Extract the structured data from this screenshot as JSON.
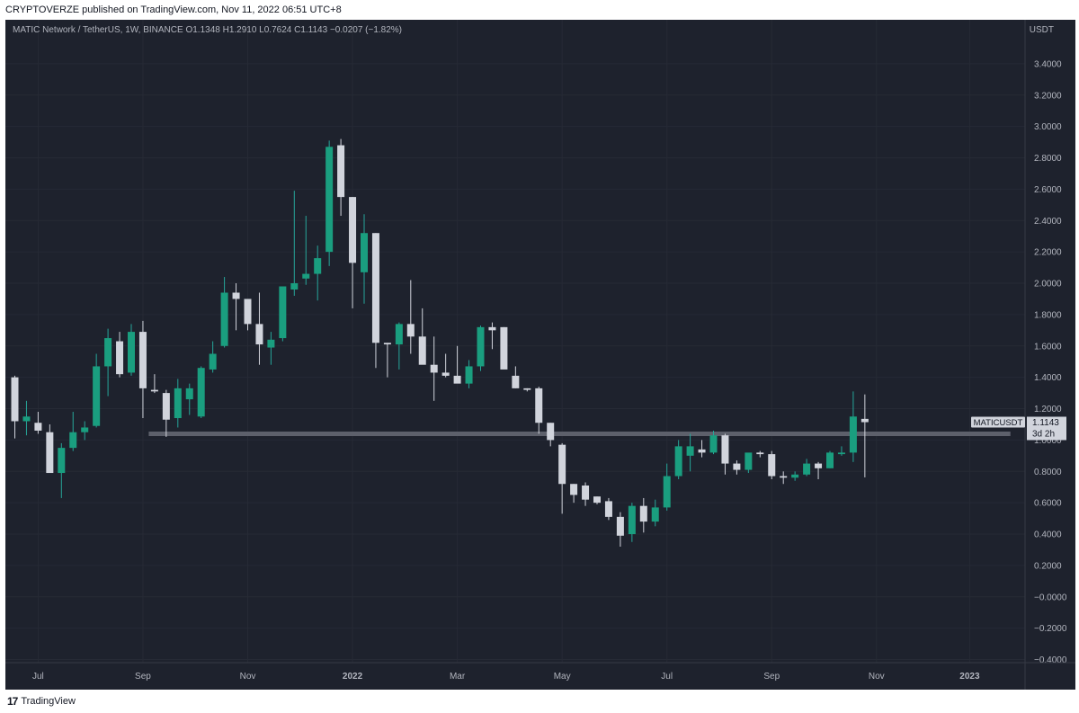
{
  "header": {
    "publisher_line": "CRYPTOVERZE published on TradingView.com, Nov 11, 2022 06:51 UTC+8"
  },
  "symbol_line": "MATIC Network / TetherUS, 1W, BINANCE  O1.1348  H1.2910  L0.7624  C1.1143  −0.0207 (−1.82%)",
  "footer": {
    "brand": "TradingView",
    "logo_mark": "17"
  },
  "colors": {
    "background": "#1e222d",
    "up": "#26a69a",
    "up_fill": "#1a9e7f",
    "down": "#d1d4dc",
    "grid": "#262a35",
    "axis_text": "#b2b5be",
    "support_line": "#5d606b",
    "price_tag_bg": "#d1d4dc",
    "price_tag_text": "#131722"
  },
  "chart_data": {
    "type": "candlestick",
    "title": "MATIC Network / TetherUS, 1W, BINANCE",
    "symbol": "MATICUSDT",
    "unit": "USDT",
    "ylim": [
      -0.5,
      3.6
    ],
    "y_ticks": [
      "3.4000",
      "3.2000",
      "3.0000",
      "2.8000",
      "2.6000",
      "2.4000",
      "2.2000",
      "2.0000",
      "1.8000",
      "1.6000",
      "1.4000",
      "1.2000",
      "1.0000",
      "0.8000",
      "0.6000",
      "0.4000",
      "0.2000",
      "−0.0000",
      "−0.2000",
      "−0.4000"
    ],
    "y_tick_values": [
      3.4,
      3.2,
      3.0,
      2.8,
      2.6,
      2.4,
      2.2,
      2.0,
      1.8,
      1.6,
      1.4,
      1.2,
      1.0,
      0.8,
      0.6,
      0.4,
      0.2,
      0.0,
      -0.2,
      -0.4
    ],
    "x_ticks": [
      {
        "label": "Jul",
        "index": 2
      },
      {
        "label": "Sep",
        "index": 11
      },
      {
        "label": "Nov",
        "index": 20
      },
      {
        "label": "2022",
        "index": 29
      },
      {
        "label": "Mar",
        "index": 38
      },
      {
        "label": "May",
        "index": 47
      },
      {
        "label": "Jul",
        "index": 56
      },
      {
        "label": "Sep",
        "index": 65
      },
      {
        "label": "Nov",
        "index": 74
      },
      {
        "label": "2023",
        "index": 82
      }
    ],
    "grid": true,
    "last_price": {
      "label": "MATICUSDT",
      "value": "1.1143",
      "countdown": "3d 2h"
    },
    "support_level": {
      "value": 1.04,
      "from_index": 11.5,
      "to_index": 85.5
    },
    "candles": [
      {
        "o": 1.4,
        "h": 1.41,
        "l": 1.01,
        "c": 1.12
      },
      {
        "o": 1.12,
        "h": 1.25,
        "l": 1.03,
        "c": 1.15
      },
      {
        "o": 1.11,
        "h": 1.18,
        "l": 1.04,
        "c": 1.06
      },
      {
        "o": 1.05,
        "h": 1.1,
        "l": 0.8,
        "c": 0.79
      },
      {
        "o": 0.79,
        "h": 0.98,
        "l": 0.63,
        "c": 0.95
      },
      {
        "o": 0.95,
        "h": 1.18,
        "l": 0.93,
        "c": 1.05
      },
      {
        "o": 1.05,
        "h": 1.12,
        "l": 1.0,
        "c": 1.08
      },
      {
        "o": 1.09,
        "h": 1.55,
        "l": 1.08,
        "c": 1.47
      },
      {
        "o": 1.47,
        "h": 1.71,
        "l": 1.28,
        "c": 1.65
      },
      {
        "o": 1.63,
        "h": 1.69,
        "l": 1.4,
        "c": 1.42
      },
      {
        "o": 1.43,
        "h": 1.74,
        "l": 1.41,
        "c": 1.69
      },
      {
        "o": 1.69,
        "h": 1.76,
        "l": 1.14,
        "c": 1.33
      },
      {
        "o": 1.32,
        "h": 1.42,
        "l": 1.3,
        "c": 1.31
      },
      {
        "o": 1.3,
        "h": 1.32,
        "l": 1.02,
        "c": 1.13
      },
      {
        "o": 1.14,
        "h": 1.39,
        "l": 1.08,
        "c": 1.33
      },
      {
        "o": 1.26,
        "h": 1.36,
        "l": 1.16,
        "c": 1.33
      },
      {
        "o": 1.15,
        "h": 1.47,
        "l": 1.14,
        "c": 1.46
      },
      {
        "o": 1.45,
        "h": 1.63,
        "l": 1.43,
        "c": 1.55
      },
      {
        "o": 1.6,
        "h": 2.04,
        "l": 1.59,
        "c": 1.94
      },
      {
        "o": 1.94,
        "h": 2.0,
        "l": 1.7,
        "c": 1.9
      },
      {
        "o": 1.9,
        "h": 1.9,
        "l": 1.7,
        "c": 1.74
      },
      {
        "o": 1.74,
        "h": 1.94,
        "l": 1.48,
        "c": 1.61
      },
      {
        "o": 1.59,
        "h": 1.69,
        "l": 1.48,
        "c": 1.64
      },
      {
        "o": 1.65,
        "h": 1.96,
        "l": 1.63,
        "c": 1.98
      },
      {
        "o": 1.96,
        "h": 2.59,
        "l": 1.92,
        "c": 2.0
      },
      {
        "o": 2.03,
        "h": 2.43,
        "l": 1.99,
        "c": 2.06
      },
      {
        "o": 2.06,
        "h": 2.24,
        "l": 1.89,
        "c": 2.16
      },
      {
        "o": 2.2,
        "h": 2.91,
        "l": 2.11,
        "c": 2.87
      },
      {
        "o": 2.88,
        "h": 2.92,
        "l": 2.43,
        "c": 2.55
      },
      {
        "o": 2.55,
        "h": 2.55,
        "l": 1.84,
        "c": 2.13
      },
      {
        "o": 2.07,
        "h": 2.44,
        "l": 1.87,
        "c": 2.32
      },
      {
        "o": 2.32,
        "h": 2.32,
        "l": 1.46,
        "c": 1.62
      },
      {
        "o": 1.62,
        "h": 1.62,
        "l": 1.4,
        "c": 1.61
      },
      {
        "o": 1.61,
        "h": 1.75,
        "l": 1.45,
        "c": 1.74
      },
      {
        "o": 1.74,
        "h": 2.02,
        "l": 1.55,
        "c": 1.66
      },
      {
        "o": 1.66,
        "h": 1.84,
        "l": 1.49,
        "c": 1.48
      },
      {
        "o": 1.48,
        "h": 1.66,
        "l": 1.25,
        "c": 1.43
      },
      {
        "o": 1.43,
        "h": 1.55,
        "l": 1.4,
        "c": 1.41
      },
      {
        "o": 1.41,
        "h": 1.6,
        "l": 1.39,
        "c": 1.36
      },
      {
        "o": 1.36,
        "h": 1.51,
        "l": 1.33,
        "c": 1.47
      },
      {
        "o": 1.47,
        "h": 1.73,
        "l": 1.44,
        "c": 1.72
      },
      {
        "o": 1.72,
        "h": 1.75,
        "l": 1.58,
        "c": 1.7
      },
      {
        "o": 1.72,
        "h": 1.72,
        "l": 1.46,
        "c": 1.45
      },
      {
        "o": 1.41,
        "h": 1.47,
        "l": 1.33,
        "c": 1.33
      },
      {
        "o": 1.33,
        "h": 1.33,
        "l": 1.31,
        "c": 1.32
      },
      {
        "o": 1.33,
        "h": 1.34,
        "l": 1.04,
        "c": 1.11
      },
      {
        "o": 1.11,
        "h": 1.11,
        "l": 0.96,
        "c": 1.0
      },
      {
        "o": 0.97,
        "h": 0.98,
        "l": 0.53,
        "c": 0.72
      },
      {
        "o": 0.72,
        "h": 0.72,
        "l": 0.6,
        "c": 0.65
      },
      {
        "o": 0.71,
        "h": 0.73,
        "l": 0.58,
        "c": 0.62
      },
      {
        "o": 0.64,
        "h": 0.64,
        "l": 0.59,
        "c": 0.6
      },
      {
        "o": 0.61,
        "h": 0.63,
        "l": 0.49,
        "c": 0.51
      },
      {
        "o": 0.51,
        "h": 0.54,
        "l": 0.32,
        "c": 0.39
      },
      {
        "o": 0.4,
        "h": 0.6,
        "l": 0.35,
        "c": 0.58
      },
      {
        "o": 0.58,
        "h": 0.63,
        "l": 0.41,
        "c": 0.48
      },
      {
        "o": 0.48,
        "h": 0.62,
        "l": 0.45,
        "c": 0.57
      },
      {
        "o": 0.57,
        "h": 0.85,
        "l": 0.55,
        "c": 0.77
      },
      {
        "o": 0.77,
        "h": 1.0,
        "l": 0.75,
        "c": 0.96
      },
      {
        "o": 0.9,
        "h": 1.04,
        "l": 0.8,
        "c": 0.96
      },
      {
        "o": 0.94,
        "h": 1.0,
        "l": 0.89,
        "c": 0.92
      },
      {
        "o": 0.92,
        "h": 1.06,
        "l": 0.91,
        "c": 1.03
      },
      {
        "o": 1.03,
        "h": 1.04,
        "l": 0.78,
        "c": 0.85
      },
      {
        "o": 0.85,
        "h": 0.87,
        "l": 0.78,
        "c": 0.81
      },
      {
        "o": 0.81,
        "h": 0.91,
        "l": 0.79,
        "c": 0.92
      },
      {
        "o": 0.92,
        "h": 0.93,
        "l": 0.89,
        "c": 0.91
      },
      {
        "o": 0.91,
        "h": 0.93,
        "l": 0.75,
        "c": 0.77
      },
      {
        "o": 0.77,
        "h": 0.8,
        "l": 0.72,
        "c": 0.76
      },
      {
        "o": 0.76,
        "h": 0.8,
        "l": 0.74,
        "c": 0.78
      },
      {
        "o": 0.78,
        "h": 0.88,
        "l": 0.77,
        "c": 0.85
      },
      {
        "o": 0.85,
        "h": 0.86,
        "l": 0.75,
        "c": 0.82
      },
      {
        "o": 0.82,
        "h": 0.93,
        "l": 0.82,
        "c": 0.92
      },
      {
        "o": 0.91,
        "h": 0.96,
        "l": 0.9,
        "c": 0.92
      },
      {
        "o": 0.92,
        "h": 1.31,
        "l": 0.86,
        "c": 1.15
      },
      {
        "o": 1.135,
        "h": 1.291,
        "l": 0.762,
        "c": 1.114
      }
    ]
  }
}
